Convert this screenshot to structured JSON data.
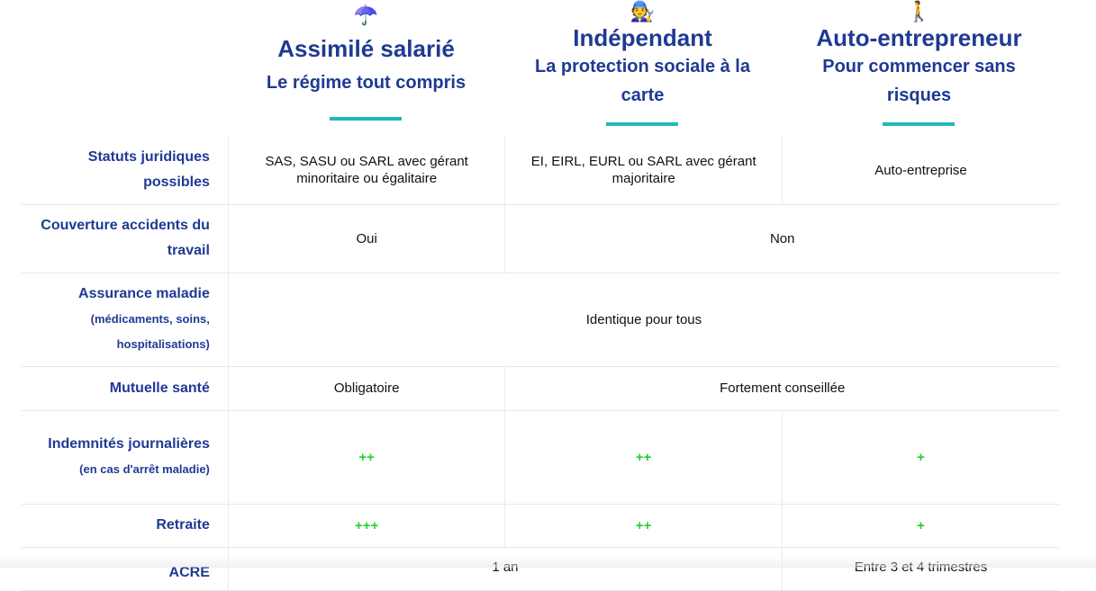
{
  "columns": [
    {
      "emoji": "☂️",
      "emoji_name": "umbrella-icon",
      "title": "Assimilé salarié",
      "tagline": "Le régime tout compris"
    },
    {
      "emoji": "🧑‍🔧",
      "emoji_name": "mechanic-icon",
      "title": "Indépendant",
      "tagline": "La protection sociale à la carte"
    },
    {
      "emoji": "🚶",
      "emoji_name": "walking-person-icon",
      "title": "Auto-entrepreneur",
      "tagline": "Pour commencer sans risques"
    }
  ],
  "rows": {
    "statuts": {
      "label": "Statuts juridiques possibles",
      "c1": "SAS, SASU ou SARL avec gérant minoritaire ou égalitaire",
      "c2": "EI, EIRL, EURL ou SARL avec gérant majoritaire",
      "c3": "Auto-entreprise"
    },
    "accidents": {
      "label": "Couverture accidents du travail",
      "c1": "Oui",
      "c23": "Non"
    },
    "maladie": {
      "label": "Assurance maladie",
      "sublabel": "(médicaments, soins, hospitalisations)",
      "all": "Identique pour tous"
    },
    "mutuelle": {
      "label": "Mutuelle santé",
      "c1": "Obligatoire",
      "c23": "Fortement conseillée"
    },
    "indemnites": {
      "label": "Indemnités journalières",
      "sublabel": "(en cas d'arrêt maladie)",
      "c1": "++",
      "c2": "++",
      "c3": "+"
    },
    "retraite": {
      "label": "Retraite",
      "c1": "+++",
      "c2": "++",
      "c3": "+"
    },
    "acre": {
      "label": "ACRE",
      "c12": "1 an",
      "c3": "Entre 3 et 4 trimestres"
    }
  },
  "colors": {
    "accent_blue": "#1f3a93",
    "teal": "#20b8bc",
    "plus_green": "#22d12a"
  }
}
